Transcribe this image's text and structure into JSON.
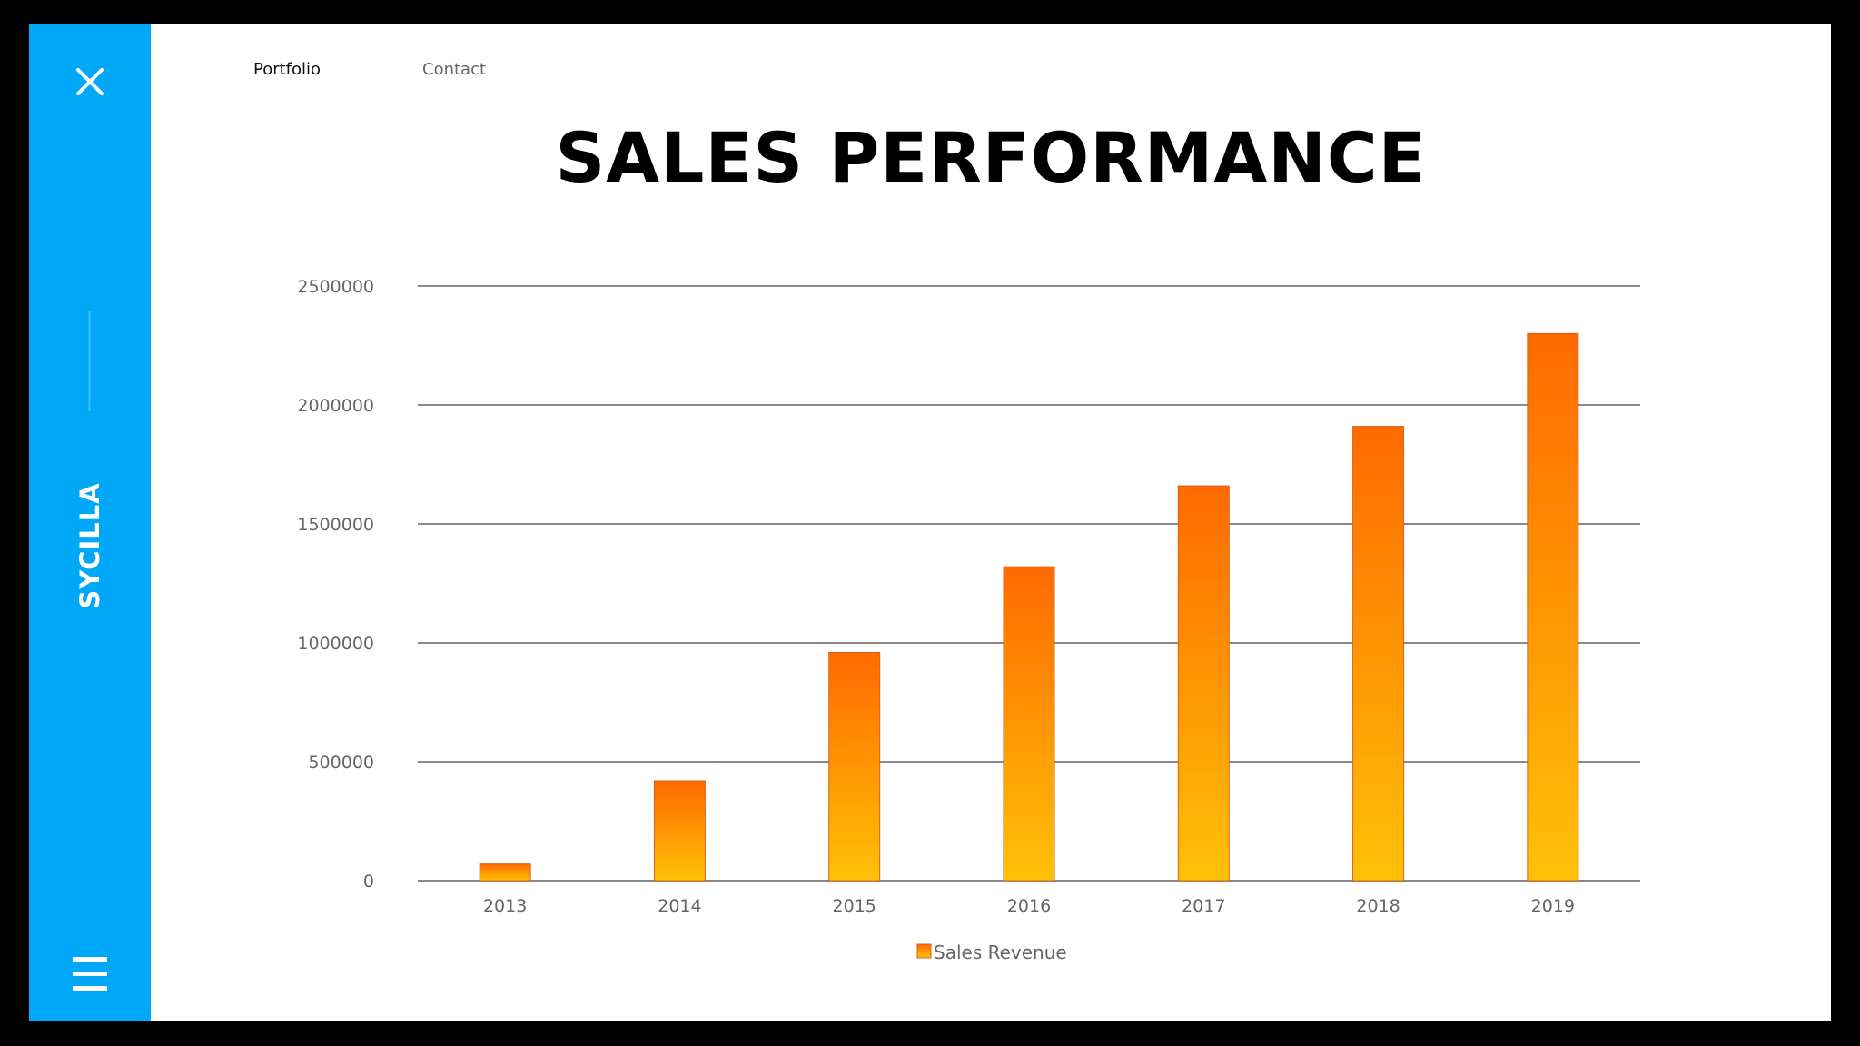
{
  "sidebar": {
    "brand": "SYCILLA",
    "close_icon": "close-icon",
    "menu_icon": "hamburger-menu-icon",
    "accent_color": "#00a8f7"
  },
  "nav": {
    "items": [
      {
        "label": "Portfolio"
      },
      {
        "label": "Contact"
      }
    ]
  },
  "page": {
    "title": "SALES PERFORMANCE"
  },
  "chart_data": {
    "type": "bar",
    "title": "SALES PERFORMANCE",
    "categories": [
      "2013",
      "2014",
      "2015",
      "2016",
      "2017",
      "2018",
      "2019"
    ],
    "series": [
      {
        "name": "Sales Revenue",
        "values": [
          70000,
          420000,
          960000,
          1320000,
          1660000,
          1910000,
          2300000
        ],
        "color_top": "#ff6a00",
        "color_bottom": "#ffc107"
      }
    ],
    "yticks": [
      "0",
      "500000",
      "1000000",
      "1500000",
      "2000000",
      "2500000"
    ],
    "ylim": [
      0,
      2500000
    ],
    "grid": true,
    "legend": "bottom-center",
    "xlabel": "",
    "ylabel": ""
  }
}
